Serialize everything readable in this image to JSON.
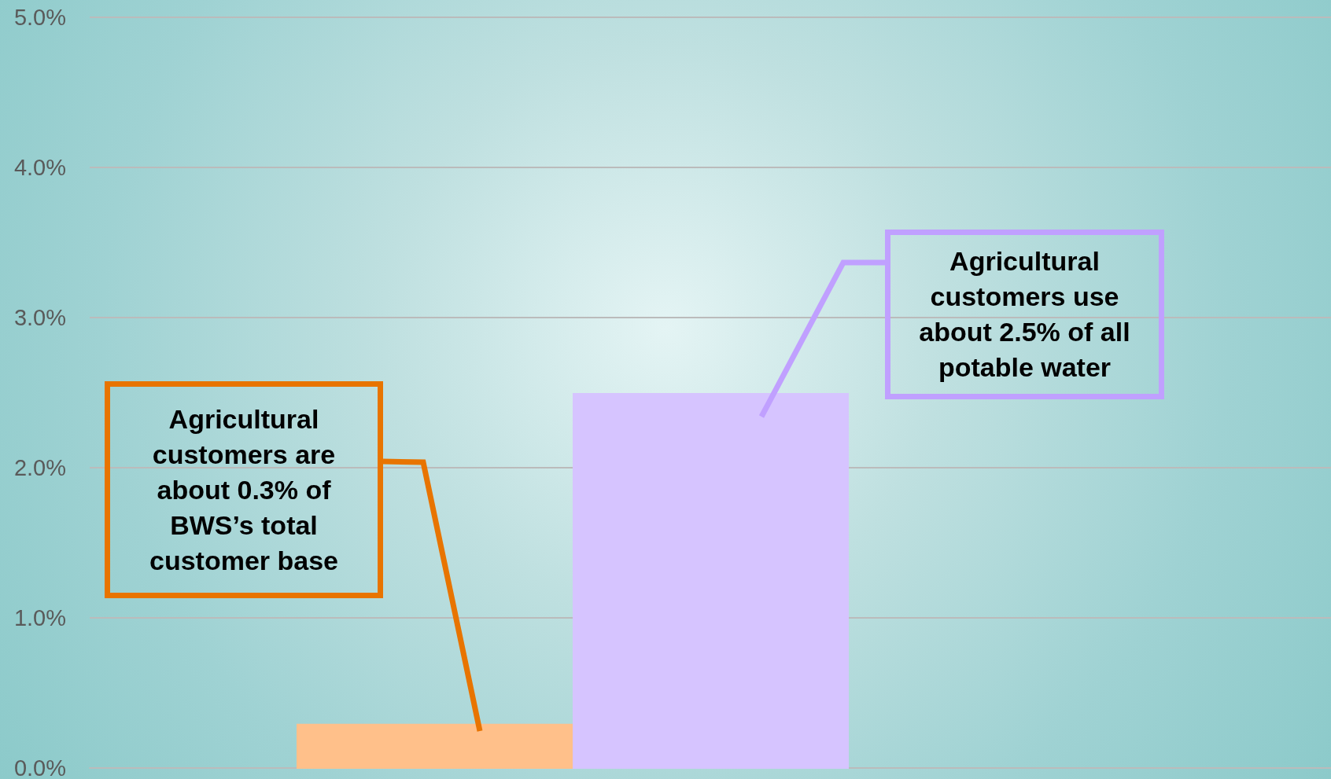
{
  "chart_data": {
    "type": "bar",
    "categories": [
      null
    ],
    "series": [
      {
        "color": "#ffc08a",
        "values": [
          0.3
        ]
      },
      {
        "color": "#d6c4ff",
        "values": [
          2.5
        ]
      }
    ],
    "ylim": [
      0,
      5
    ],
    "yticks": [
      {
        "value": 0,
        "label": "0.0%"
      },
      {
        "value": 1,
        "label": "1.0%"
      },
      {
        "value": 2,
        "label": "2.0%"
      },
      {
        "value": 3,
        "label": "3.0%"
      },
      {
        "value": 4,
        "label": "4.0%"
      },
      {
        "value": 5,
        "label": "5.0%"
      }
    ],
    "grid": "y",
    "annotations": [
      "Agricultural customers are about 0.3% of BWS’s total customer base",
      "Agricultural customers use about 2.5% of all potable water"
    ]
  }
}
